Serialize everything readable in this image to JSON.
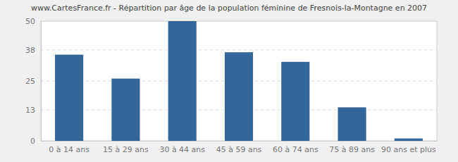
{
  "chart_data": {
    "type": "bar",
    "title": "www.CartesFrance.fr - Répartition par âge de la population féminine de Fresnois-la-Montagne en 2007",
    "categories": [
      "0 à 14 ans",
      "15 à 29 ans",
      "30 à 44 ans",
      "45 à 59 ans",
      "60 à 74 ans",
      "75 à 89 ans",
      "90 ans et plus"
    ],
    "values": [
      36,
      26,
      50,
      37,
      33,
      14,
      1
    ],
    "color": "#336699",
    "ylim": [
      0,
      50
    ],
    "yticks": [
      0,
      13,
      25,
      38,
      50
    ],
    "grid": true
  }
}
